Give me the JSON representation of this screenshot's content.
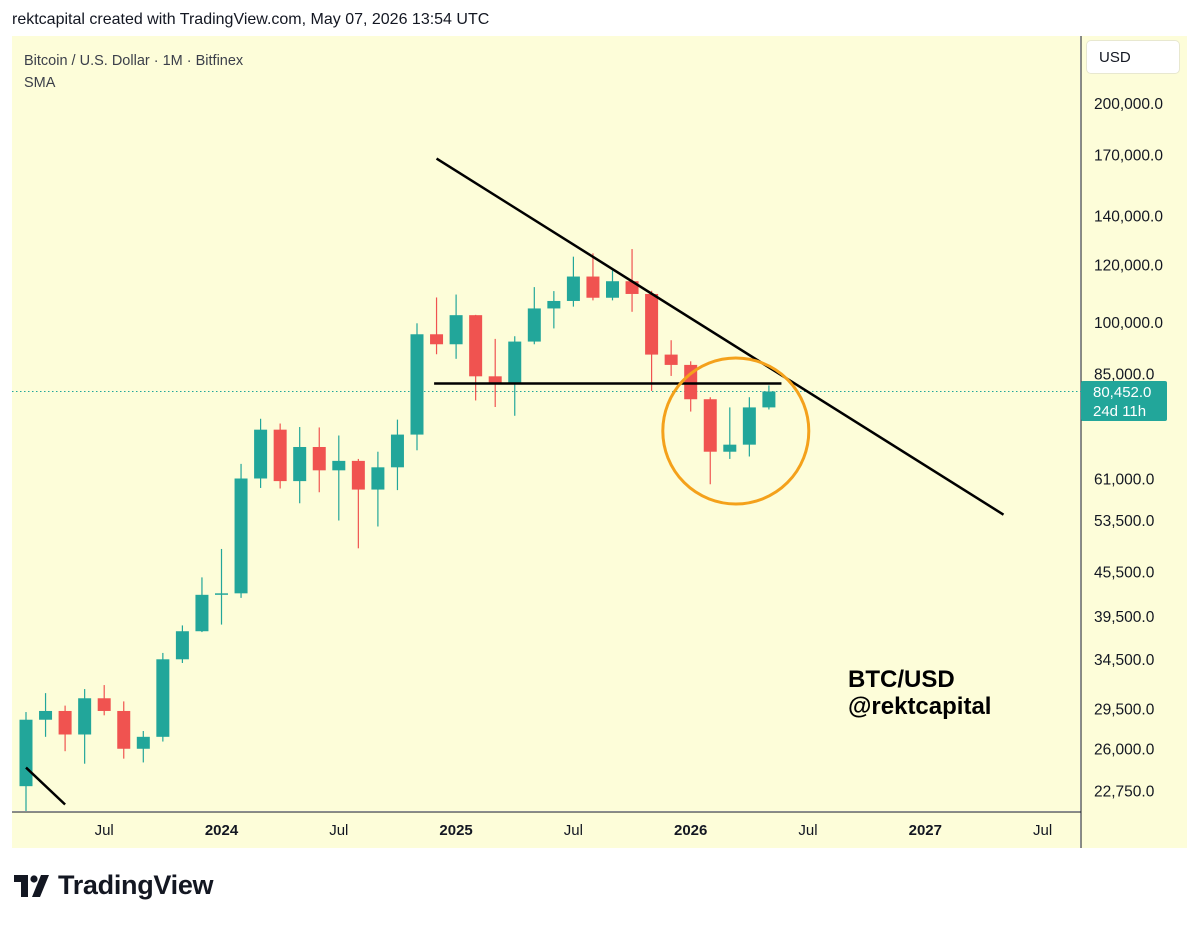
{
  "header": {
    "text": "rektcapital created with TradingView.com, May 07, 2026 13:54 UTC"
  },
  "legend": {
    "symbol": "Bitcoin / U.S. Dollar · 1M · Bitfinex",
    "indicator": "SMA"
  },
  "toolbar": {
    "currency": "USD"
  },
  "current_price": {
    "value": "80,452.0",
    "countdown": "24d 11h",
    "color": "#22a69a"
  },
  "watermark": {
    "line1": "BTC/USD",
    "line2": "@rektcapital"
  },
  "brand": {
    "name": "TradingView"
  },
  "colors": {
    "up": "#22a69a",
    "down": "#f05350",
    "background": "#fdfdd9",
    "highlight_circle": "#f4a11b",
    "trendline": "#000000"
  },
  "chart_data": {
    "type": "candlestick",
    "timeframe": "1M",
    "y_scale": "log",
    "y_ticks": [
      {
        "value": 200000,
        "label": "200,000.0"
      },
      {
        "value": 170000,
        "label": "170,000.0"
      },
      {
        "value": 140000,
        "label": "140,000.0"
      },
      {
        "value": 120000,
        "label": "120,000.0"
      },
      {
        "value": 100000,
        "label": "100,000.0"
      },
      {
        "value": 85000,
        "label": "85,000.0"
      },
      {
        "value": 61000,
        "label": "61,000.0"
      },
      {
        "value": 53500,
        "label": "53,500.0"
      },
      {
        "value": 45500,
        "label": "45,500.0"
      },
      {
        "value": 39500,
        "label": "39,500.0"
      },
      {
        "value": 34500,
        "label": "34,500.0"
      },
      {
        "value": 29500,
        "label": "29,500.0"
      },
      {
        "value": 26000,
        "label": "26,000.0"
      },
      {
        "value": 22750,
        "label": "22,750.0"
      }
    ],
    "x_ticks": [
      {
        "date": "2023-07",
        "label": "Jul",
        "bold": false
      },
      {
        "date": "2024-01",
        "label": "2024",
        "bold": true
      },
      {
        "date": "2024-07",
        "label": "Jul",
        "bold": false
      },
      {
        "date": "2025-01",
        "label": "2025",
        "bold": true
      },
      {
        "date": "2025-07",
        "label": "Jul",
        "bold": false
      },
      {
        "date": "2026-01",
        "label": "2026",
        "bold": true
      },
      {
        "date": "2026-07",
        "label": "Jul",
        "bold": false
      },
      {
        "date": "2027-01",
        "label": "2027",
        "bold": true
      },
      {
        "date": "2027-07",
        "label": "Jul",
        "bold": false
      }
    ],
    "candles": [
      {
        "date": "2023-03",
        "o": 23100,
        "h": 29200,
        "l": 19900,
        "c": 28500
      },
      {
        "date": "2023-04",
        "o": 28500,
        "h": 31000,
        "l": 27000,
        "c": 29300
      },
      {
        "date": "2023-05",
        "o": 29300,
        "h": 29800,
        "l": 25800,
        "c": 27200
      },
      {
        "date": "2023-06",
        "o": 27200,
        "h": 31400,
        "l": 24800,
        "c": 30500
      },
      {
        "date": "2023-07",
        "o": 30500,
        "h": 31800,
        "l": 28900,
        "c": 29300
      },
      {
        "date": "2023-08",
        "o": 29300,
        "h": 30200,
        "l": 25200,
        "c": 26000
      },
      {
        "date": "2023-09",
        "o": 26000,
        "h": 27500,
        "l": 24900,
        "c": 27000
      },
      {
        "date": "2023-10",
        "o": 27000,
        "h": 35200,
        "l": 26600,
        "c": 34500
      },
      {
        "date": "2023-11",
        "o": 34500,
        "h": 38400,
        "l": 34100,
        "c": 37700
      },
      {
        "date": "2023-12",
        "o": 37700,
        "h": 44700,
        "l": 37600,
        "c": 42300
      },
      {
        "date": "2024-01",
        "o": 42300,
        "h": 48900,
        "l": 38500,
        "c": 42500
      },
      {
        "date": "2024-02",
        "o": 42500,
        "h": 64000,
        "l": 41900,
        "c": 61100
      },
      {
        "date": "2024-03",
        "o": 61100,
        "h": 73800,
        "l": 59300,
        "c": 71300
      },
      {
        "date": "2024-04",
        "o": 71300,
        "h": 72700,
        "l": 59200,
        "c": 60600
      },
      {
        "date": "2024-05",
        "o": 60600,
        "h": 71900,
        "l": 56500,
        "c": 67500
      },
      {
        "date": "2024-06",
        "o": 67500,
        "h": 71800,
        "l": 58500,
        "c": 62700
      },
      {
        "date": "2024-07",
        "o": 62700,
        "h": 70000,
        "l": 53500,
        "c": 64600
      },
      {
        "date": "2024-08",
        "o": 64600,
        "h": 65000,
        "l": 49000,
        "c": 59000
      },
      {
        "date": "2024-09",
        "o": 59000,
        "h": 66500,
        "l": 52500,
        "c": 63300
      },
      {
        "date": "2024-10",
        "o": 63300,
        "h": 73600,
        "l": 58900,
        "c": 70200
      },
      {
        "date": "2024-11",
        "o": 70200,
        "h": 99800,
        "l": 66800,
        "c": 96400
      },
      {
        "date": "2024-12",
        "o": 96400,
        "h": 108300,
        "l": 90500,
        "c": 93400
      },
      {
        "date": "2025-01",
        "o": 93400,
        "h": 109300,
        "l": 89200,
        "c": 102400
      },
      {
        "date": "2025-02",
        "o": 102400,
        "h": 102500,
        "l": 78200,
        "c": 84400
      },
      {
        "date": "2025-03",
        "o": 84400,
        "h": 95000,
        "l": 76600,
        "c": 82500
      },
      {
        "date": "2025-04",
        "o": 82500,
        "h": 95800,
        "l": 74500,
        "c": 94200
      },
      {
        "date": "2025-05",
        "o": 94200,
        "h": 111900,
        "l": 93400,
        "c": 104600
      },
      {
        "date": "2025-06",
        "o": 104600,
        "h": 110500,
        "l": 98200,
        "c": 107100
      },
      {
        "date": "2025-07",
        "o": 107100,
        "h": 123200,
        "l": 105200,
        "c": 115700
      },
      {
        "date": "2025-08",
        "o": 115700,
        "h": 124500,
        "l": 107300,
        "c": 108200
      },
      {
        "date": "2025-09",
        "o": 108200,
        "h": 117900,
        "l": 107300,
        "c": 114000
      },
      {
        "date": "2025-10",
        "o": 114000,
        "h": 126200,
        "l": 103500,
        "c": 109500
      },
      {
        "date": "2025-11",
        "o": 109500,
        "h": 110600,
        "l": 80600,
        "c": 90400
      },
      {
        "date": "2025-12",
        "o": 90400,
        "h": 94600,
        "l": 84500,
        "c": 87500
      },
      {
        "date": "2026-01",
        "o": 87500,
        "h": 88500,
        "l": 75500,
        "c": 78500
      },
      {
        "date": "2026-02",
        "o": 78500,
        "h": 79000,
        "l": 60000,
        "c": 66500
      },
      {
        "date": "2026-03",
        "o": 66500,
        "h": 76500,
        "l": 65000,
        "c": 68000
      },
      {
        "date": "2026-04",
        "o": 68000,
        "h": 79000,
        "l": 65500,
        "c": 76500
      },
      {
        "date": "2026-05",
        "o": 76500,
        "h": 82000,
        "l": 76000,
        "c": 80452
      }
    ],
    "trendlines": [
      {
        "from": {
          "date": "2024-12",
          "price": 168000
        },
        "to": {
          "date": "2027-05",
          "price": 54500
        }
      },
      {
        "from": {
          "date": "2023-03",
          "price": 24500
        },
        "to": {
          "date": "2023-05",
          "price": 21800
        }
      }
    ],
    "horizontal_lines": [
      {
        "from": "2025-01",
        "to": "2026-06",
        "price": 82500
      }
    ],
    "highlight": {
      "center_date": "2026-03",
      "center_price": 71000
    },
    "current_price_line": 80452
  }
}
